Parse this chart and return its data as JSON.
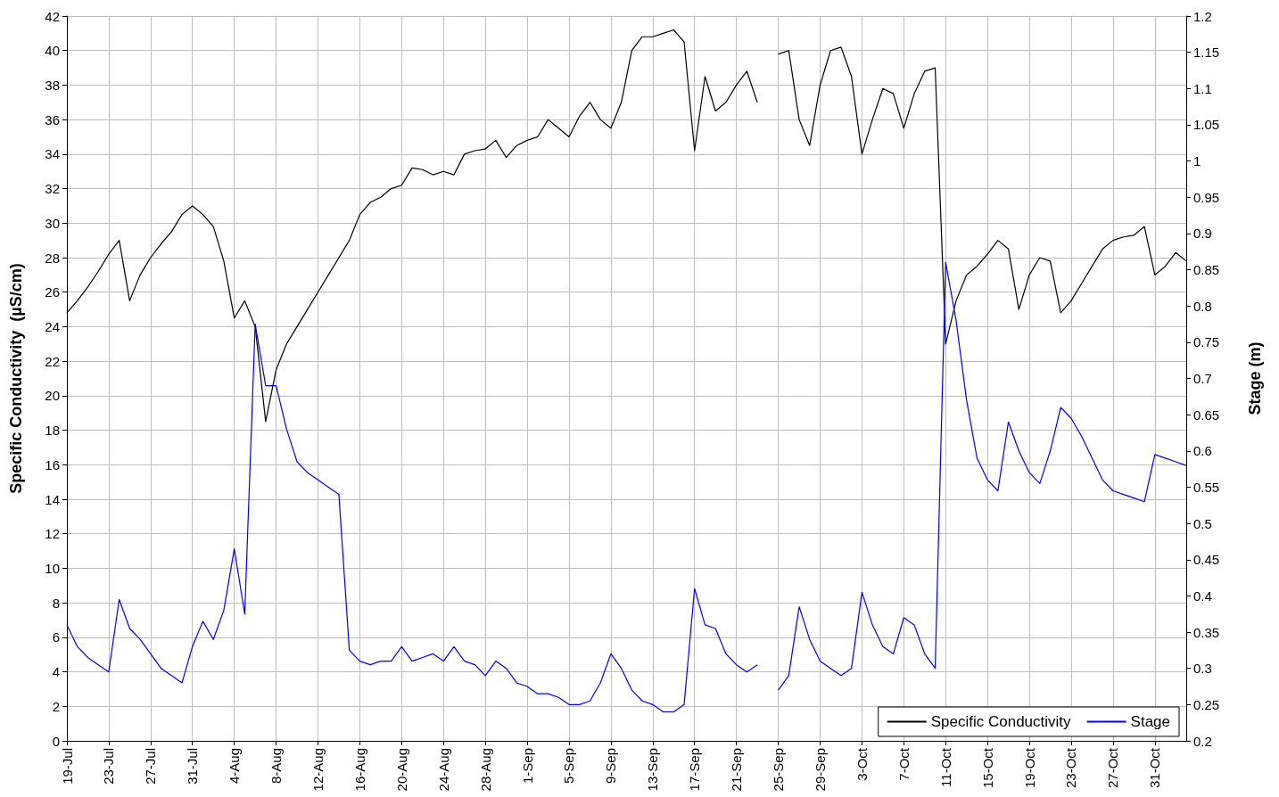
{
  "chart_data": {
    "type": "line",
    "ylabel": "Specific Conductivity  (µS/cm)",
    "y2label": "Stage (m)",
    "xlim": [
      "--07-19",
      "--11-03"
    ],
    "xticks": [
      {
        "value": "--07-19",
        "label": "19-Jul"
      },
      {
        "value": "--07-23",
        "label": "23-Jul"
      },
      {
        "value": "--07-27",
        "label": "27-Jul"
      },
      {
        "value": "--07-31",
        "label": "31-Jul"
      },
      {
        "value": "--08-04",
        "label": "4-Aug"
      },
      {
        "value": "--08-08",
        "label": "8-Aug"
      },
      {
        "value": "--08-12",
        "label": "12-Aug"
      },
      {
        "value": "--08-16",
        "label": "16-Aug"
      },
      {
        "value": "--08-20",
        "label": "20-Aug"
      },
      {
        "value": "--08-24",
        "label": "24-Aug"
      },
      {
        "value": "--08-28",
        "label": "28-Aug"
      },
      {
        "value": "--09-01",
        "label": "1-Sep"
      },
      {
        "value": "--09-05",
        "label": "5-Sep"
      },
      {
        "value": "--09-09",
        "label": "9-Sep"
      },
      {
        "value": "--09-13",
        "label": "13-Sep"
      },
      {
        "value": "--09-17",
        "label": "17-Sep"
      },
      {
        "value": "--09-21",
        "label": "21-Sep"
      },
      {
        "value": "--09-25",
        "label": "25-Sep"
      },
      {
        "value": "--09-29",
        "label": "29-Sep"
      },
      {
        "value": "--10-03",
        "label": "3-Oct"
      },
      {
        "value": "--10-07",
        "label": "7-Oct"
      },
      {
        "value": "--10-11",
        "label": "11-Oct"
      },
      {
        "value": "--10-15",
        "label": "15-Oct"
      },
      {
        "value": "--10-19",
        "label": "19-Oct"
      },
      {
        "value": "--10-23",
        "label": "23-Oct"
      },
      {
        "value": "--10-27",
        "label": "27-Oct"
      },
      {
        "value": "--10-31",
        "label": "31-Oct"
      }
    ],
    "ylim": [
      0,
      42
    ],
    "yticks": [
      0,
      2,
      4,
      6,
      8,
      10,
      12,
      14,
      16,
      18,
      20,
      22,
      24,
      26,
      28,
      30,
      32,
      34,
      36,
      38,
      40,
      42
    ],
    "y2lim": [
      0.2,
      1.2
    ],
    "y2ticks": [
      0.2,
      0.25,
      0.3,
      0.35,
      0.4,
      0.45,
      0.5,
      0.55,
      0.6,
      0.65,
      0.7,
      0.75,
      0.8,
      0.85,
      0.9,
      0.95,
      1,
      1.05,
      1.1,
      1.15,
      1.2
    ],
    "grid": true,
    "legend": "bottom right",
    "marker": "none",
    "line_style": "solid",
    "series": [
      {
        "name": "Specific Conductivity",
        "color": "#000000",
        "x": [
          "--07-19",
          "--07-20",
          "--07-21",
          "--07-22",
          "--07-23",
          "--07-24",
          "--07-25",
          "--07-26",
          "--07-27",
          "--07-28",
          "--07-29",
          "--07-30",
          "--07-31",
          "--08-01",
          "--08-02",
          "--08-03",
          "--08-04",
          "--08-05",
          "--08-06",
          "--08-07",
          "--08-08",
          "--08-09",
          "--08-10",
          "--08-11",
          "--08-12",
          "--08-13",
          "--08-14",
          "--08-15",
          "--08-16",
          "--08-17",
          "--08-18",
          "--08-19",
          "--08-20",
          "--08-21",
          "--08-22",
          "--08-23",
          "--08-24",
          "--08-25",
          "--08-26",
          "--08-27",
          "--08-28",
          "--08-29",
          "--08-30",
          "--08-31",
          "--09-01",
          "--09-02",
          "--09-03",
          "--09-04",
          "--09-05",
          "--09-06",
          "--09-07",
          "--09-08",
          "--09-09",
          "--09-10",
          "--09-11",
          "--09-12",
          "--09-13",
          "--09-14",
          "--09-15",
          "--09-16",
          "--09-17",
          "--09-18",
          "--09-19",
          "--09-20",
          "--09-21",
          "--09-22",
          "--09-23",
          "--09-24",
          "--09-25",
          "--09-26",
          "--09-27",
          "--09-28",
          "--09-29",
          "--09-30",
          "--10-01",
          "--10-02",
          "--10-03",
          "--10-04",
          "--10-05",
          "--10-06",
          "--10-07",
          "--10-08",
          "--10-09",
          "--10-10",
          "--10-11",
          "--10-12",
          "--10-13",
          "--10-14",
          "--10-15",
          "--10-16",
          "--10-17",
          "--10-18",
          "--10-19",
          "--10-20",
          "--10-21",
          "--10-22",
          "--10-23",
          "--10-24",
          "--10-25",
          "--10-26",
          "--10-27",
          "--10-28",
          "--10-29",
          "--10-30",
          "--10-31",
          "--11-01",
          "--11-02",
          "--11-03"
        ],
        "values": [
          24.8,
          25.5,
          26.3,
          27.2,
          28.2,
          29.0,
          25.5,
          27.0,
          28.0,
          28.8,
          29.5,
          30.5,
          31.0,
          30.5,
          29.8,
          27.8,
          24.5,
          25.5,
          24.0,
          18.5,
          21.5,
          23.0,
          24.0,
          25.0,
          26.0,
          27.0,
          28.0,
          29.0,
          30.5,
          31.2,
          31.5,
          32.0,
          32.2,
          33.2,
          33.1,
          32.8,
          33.0,
          32.8,
          34.0,
          34.2,
          34.3,
          34.8,
          33.8,
          34.5,
          34.8,
          35.0,
          36.0,
          35.5,
          35.0,
          36.2,
          37.0,
          36.0,
          35.5,
          37.0,
          40.0,
          40.8,
          40.8,
          41.0,
          41.2,
          40.5,
          34.2,
          38.5,
          36.5,
          37.0,
          38.0,
          38.8,
          37.0,
          null,
          39.8,
          40.0,
          36.0,
          34.5,
          38.0,
          40.0,
          40.2,
          38.5,
          34.0,
          36.0,
          37.8,
          37.5,
          35.5,
          37.5,
          38.8,
          39.0,
          23.0,
          25.5,
          27.0,
          27.5,
          28.2,
          29.0,
          28.5,
          25.0,
          27.0,
          28.0,
          27.8,
          24.8,
          25.5,
          26.5,
          27.5,
          28.5,
          29.0,
          29.2,
          29.3,
          29.8,
          27.0,
          27.5,
          28.3,
          27.8
        ]
      },
      {
        "name": "Stage",
        "color": "#0000ff",
        "axis": "y2",
        "x": [
          "--07-19",
          "--07-20",
          "--07-21",
          "--07-22",
          "--07-23",
          "--07-24",
          "--07-25",
          "--07-26",
          "--07-27",
          "--07-28",
          "--07-29",
          "--07-30",
          "--07-31",
          "--08-01",
          "--08-02",
          "--08-03",
          "--08-04",
          "--08-05",
          "--08-06",
          "--08-07",
          "--08-08",
          "--08-09",
          "--08-10",
          "--08-11",
          "--08-12",
          "--08-13",
          "--08-14",
          "--08-15",
          "--08-16",
          "--08-17",
          "--08-18",
          "--08-19",
          "--08-20",
          "--08-21",
          "--08-22",
          "--08-23",
          "--08-24",
          "--08-25",
          "--08-26",
          "--08-27",
          "--08-28",
          "--08-29",
          "--08-30",
          "--08-31",
          "--09-01",
          "--09-02",
          "--09-03",
          "--09-04",
          "--09-05",
          "--09-06",
          "--09-07",
          "--09-08",
          "--09-09",
          "--09-10",
          "--09-11",
          "--09-12",
          "--09-13",
          "--09-14",
          "--09-15",
          "--09-16",
          "--09-17",
          "--09-18",
          "--09-19",
          "--09-20",
          "--09-21",
          "--09-22",
          "--09-23",
          "--09-24",
          "--09-25",
          "--09-26",
          "--09-27",
          "--09-28",
          "--09-29",
          "--09-30",
          "--10-01",
          "--10-02",
          "--10-03",
          "--10-04",
          "--10-05",
          "--10-06",
          "--10-07",
          "--10-08",
          "--10-09",
          "--10-10",
          "--10-11",
          "--10-12",
          "--10-13",
          "--10-14",
          "--10-15",
          "--10-16",
          "--10-17",
          "--10-18",
          "--10-19",
          "--10-20",
          "--10-21",
          "--10-22",
          "--10-23",
          "--10-24",
          "--10-25",
          "--10-26",
          "--10-27",
          "--10-28",
          "--10-29",
          "--10-30",
          "--10-31",
          "--11-01",
          "--11-02",
          "--11-03"
        ],
        "values": [
          0.36,
          0.33,
          0.315,
          0.305,
          0.295,
          0.395,
          0.355,
          0.34,
          0.32,
          0.3,
          0.29,
          0.28,
          0.33,
          0.365,
          0.34,
          0.38,
          0.465,
          0.375,
          0.775,
          0.69,
          0.69,
          0.63,
          0.585,
          0.57,
          0.56,
          0.55,
          0.54,
          0.325,
          0.31,
          0.305,
          0.31,
          0.31,
          0.33,
          0.31,
          0.315,
          0.32,
          0.31,
          0.33,
          0.31,
          0.305,
          0.29,
          0.31,
          0.3,
          0.28,
          0.275,
          0.265,
          0.265,
          0.26,
          0.25,
          0.25,
          0.255,
          0.28,
          0.32,
          0.3,
          0.27,
          0.255,
          0.25,
          0.24,
          0.24,
          0.25,
          0.41,
          0.36,
          0.355,
          0.32,
          0.305,
          0.295,
          0.305,
          null,
          0.27,
          0.29,
          0.385,
          0.34,
          0.31,
          0.3,
          0.29,
          0.3,
          0.405,
          0.36,
          0.33,
          0.32,
          0.37,
          0.36,
          0.32,
          0.3,
          0.86,
          0.78,
          0.67,
          0.59,
          0.56,
          0.545,
          0.64,
          0.6,
          0.57,
          0.555,
          0.6,
          0.66,
          0.645,
          0.62,
          0.59,
          0.56,
          0.545,
          0.54,
          0.535,
          0.53,
          0.595,
          0.59,
          0.585,
          0.58
        ]
      }
    ]
  }
}
